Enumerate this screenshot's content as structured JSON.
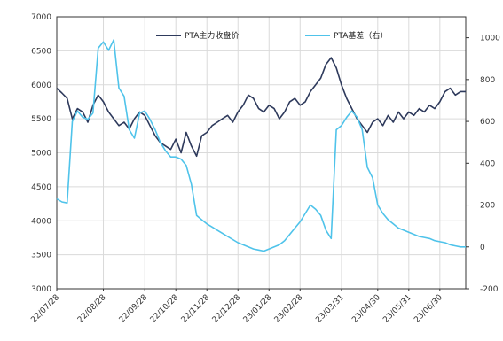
{
  "chart_data": {
    "type": "line",
    "x": [
      "22/07/28",
      "22/07/30",
      "22/08/02",
      "22/08/05",
      "22/08/08",
      "22/08/12",
      "22/08/16",
      "22/08/20",
      "22/08/24",
      "22/08/28",
      "22/09/01",
      "22/09/05",
      "22/09/09",
      "22/09/13",
      "22/09/17",
      "22/09/21",
      "22/09/25",
      "22/09/28",
      "22/10/03",
      "22/10/08",
      "22/10/13",
      "22/10/18",
      "22/10/23",
      "22/10/28",
      "22/11/02",
      "22/11/07",
      "22/11/12",
      "22/11/17",
      "22/11/22",
      "22/11/28",
      "22/12/03",
      "22/12/08",
      "22/12/13",
      "22/12/18",
      "22/12/23",
      "22/12/28",
      "23/01/02",
      "23/01/07",
      "23/01/12",
      "23/01/17",
      "23/01/22",
      "23/01/28",
      "23/02/03",
      "23/02/08",
      "23/02/13",
      "23/02/18",
      "23/02/23",
      "23/02/28",
      "23/03/04",
      "23/03/08",
      "23/03/12",
      "23/03/16",
      "23/03/20",
      "23/03/24",
      "23/03/28",
      "23/03/31",
      "23/04/03",
      "23/04/07",
      "23/04/11",
      "23/04/15",
      "23/04/20",
      "23/04/25",
      "23/04/30",
      "23/05/05",
      "23/05/10",
      "23/05/15",
      "23/05/20",
      "23/05/25",
      "23/05/31",
      "23/06/05",
      "23/06/10",
      "23/06/15",
      "23/06/20",
      "23/06/25",
      "23/06/30",
      "23/07/04",
      "23/07/08",
      "23/07/12",
      "23/07/16",
      "23/07/20"
    ],
    "series": [
      {
        "name": "PTA主力收盘价",
        "color": "#2e3a5c",
        "axis": "left",
        "values": [
          5950,
          5880,
          5800,
          5500,
          5650,
          5600,
          5450,
          5700,
          5850,
          5750,
          5600,
          5500,
          5400,
          5450,
          5350,
          5500,
          5600,
          5550,
          5400,
          5250,
          5150,
          5100,
          5050,
          5200,
          5000,
          5300,
          5100,
          4950,
          5250,
          5300,
          5400,
          5450,
          5500,
          5550,
          5450,
          5600,
          5700,
          5850,
          5800,
          5650,
          5600,
          5700,
          5650,
          5500,
          5600,
          5750,
          5800,
          5700,
          5750,
          5900,
          6000,
          6100,
          6300,
          6400,
          6250,
          6000,
          5800,
          5650,
          5500,
          5400,
          5300,
          5450,
          5500,
          5400,
          5550,
          5450,
          5600,
          5500,
          5600,
          5550,
          5650,
          5600,
          5700,
          5650,
          5750,
          5900,
          5950,
          5850,
          5900,
          5900
        ]
      },
      {
        "name": "PTA基差（右）",
        "color": "#4fc3ea",
        "axis": "right",
        "values": [
          230,
          215,
          210,
          600,
          650,
          620,
          610,
          640,
          950,
          980,
          940,
          990,
          760,
          720,
          560,
          520,
          640,
          650,
          610,
          560,
          500,
          460,
          430,
          430,
          420,
          390,
          300,
          150,
          130,
          110,
          95,
          80,
          65,
          50,
          35,
          20,
          10,
          0,
          -10,
          -15,
          -20,
          -10,
          0,
          10,
          30,
          60,
          90,
          120,
          160,
          200,
          180,
          150,
          80,
          40,
          560,
          580,
          620,
          650,
          620,
          560,
          380,
          330,
          200,
          160,
          130,
          110,
          90,
          80,
          70,
          60,
          50,
          45,
          40,
          30,
          25,
          20,
          10,
          5,
          0,
          0
        ]
      }
    ],
    "x_ticks": [
      "22/07/28",
      "22/08/28",
      "22/09/28",
      "22/10/28",
      "22/11/28",
      "22/12/28",
      "23/01/28",
      "23/02/28",
      "23/03/31",
      "23/04/30",
      "23/05/31",
      "23/06/30"
    ],
    "y_left": {
      "ticks": [
        "7000",
        "6500",
        "6000",
        "5500",
        "5000",
        "4500",
        "4000",
        "3500",
        "3000"
      ],
      "min": 3000,
      "max": 7000
    },
    "y_right": {
      "ticks": [
        "1000",
        "800",
        "600",
        "400",
        "200",
        "0",
        "-200"
      ],
      "min": -200,
      "max": 1100
    },
    "legend": {
      "placement": "top-center",
      "items": [
        "PTA主力收盘价",
        "PTA基差（右）"
      ]
    },
    "grid": true,
    "title": "",
    "xlabel": "",
    "ylabel": ""
  }
}
